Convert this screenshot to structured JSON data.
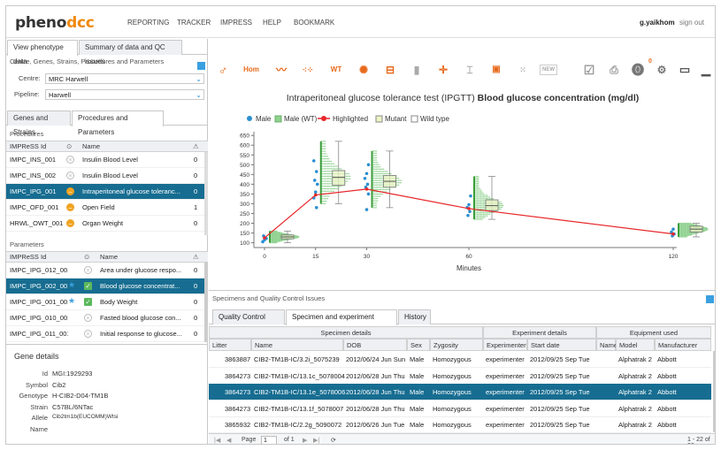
{
  "app": {
    "logo_a": "pheno",
    "logo_b": "dcc"
  },
  "nav": [
    "REPORTING",
    "TRACKER",
    "IMPRESS",
    "HELP",
    "BOOKMARK"
  ],
  "user": {
    "name": "g.yaikhom",
    "signout": "sign out"
  },
  "left": {
    "tabs": [
      "View phenotype data",
      "Summary of data and QC issues"
    ],
    "subtitle": "Centre, Genes, Strains, Procedures and Parameters",
    "centre_label": "Centre:",
    "centre_value": "MRC Harwell",
    "pipeline_label": "Pipeline:",
    "pipeline_value": "Harwell",
    "tabs2": [
      "Genes and Strains",
      "Procedures and Parameters"
    ],
    "procedures_label": "Procedures",
    "proc_headers": [
      "IMPReSS Id",
      "Name"
    ],
    "procedures": [
      {
        "id": "IMPC_INS_001",
        "name": "Insulin Blood Level",
        "status": "x",
        "count": "0"
      },
      {
        "id": "IMPC_INS_002",
        "name": "Insulin Blood Level",
        "status": "x",
        "count": "0"
      },
      {
        "id": "IMPC_IPG_001",
        "name": "Intraperitoneal glucose toleranc...",
        "status": "o",
        "count": "0"
      },
      {
        "id": "IMPC_OFD_001",
        "name": "Open Field",
        "status": "o",
        "count": "1"
      },
      {
        "id": "HRWL_OWT_001",
        "name": "Organ Weight",
        "status": "o",
        "count": "0"
      }
    ],
    "parameters_label": "Parameters",
    "param_headers": [
      "IMPReSS Id",
      "Name"
    ],
    "parameters": [
      {
        "id": "IMPC_IPG_012_001",
        "name": "Area under glucose respo...",
        "status": "x",
        "count": "0",
        "star": ""
      },
      {
        "id": "IMPC_IPG_002_001",
        "name": "Blood glucose concentrat...",
        "status": "chk",
        "count": "0",
        "star": "★"
      },
      {
        "id": "IMPC_IPG_001_001",
        "name": "Body Weight",
        "status": "chk",
        "count": "0",
        "star": "★"
      },
      {
        "id": "IMPC_IPG_010_001",
        "name": "Fasted blood glucose con...",
        "status": "x",
        "count": "0",
        "star": ""
      },
      {
        "id": "IMPC_IPG_011_001",
        "name": "Initial response to glucose...",
        "status": "x",
        "count": "0",
        "star": ""
      }
    ],
    "gene_details_title": "Gene details",
    "gene": [
      {
        "k": "Id",
        "v": "MGI:1929293"
      },
      {
        "k": "Symbol",
        "v": "Cib2"
      },
      {
        "k": "Genotype",
        "v": "H-CIB2-D04-TM1B"
      },
      {
        "k": "Strain",
        "v": "C57BL/6NTac"
      },
      {
        "k": "Allele",
        "v": "Cib2tm1b(EUCOMM)Wtsi"
      },
      {
        "k": "Name",
        "v": ""
      }
    ]
  },
  "toolbar": {
    "hom": "Hom",
    "wt": "WT",
    "new": "NEW",
    "badge": "0"
  },
  "chart_data": {
    "type": "scatter",
    "title_prefix": "Intraperitoneal glucose tolerance test (IPGTT)",
    "title_bold": "Blood glucose concentration (mg/dl)",
    "xlabel": "Minutes",
    "ylabel": "",
    "x_ticks": [
      0,
      15,
      30,
      60,
      120
    ],
    "y_ticks": [
      100,
      150,
      200,
      250,
      300,
      350,
      400,
      450,
      500,
      550,
      600,
      650
    ],
    "ylim": [
      80,
      660
    ],
    "xlim": [
      0,
      120
    ],
    "legend": [
      "Male",
      "Male (WT)",
      "Highlighted",
      "Mutant",
      "Wild type"
    ],
    "legend_colors": {
      "male": "#2b8fd1",
      "wt": "#8fd18f",
      "highlight": "#e8272a",
      "mutant": "#eef5c6",
      "wildtype": "#ffffff"
    },
    "highlighted": {
      "x": [
        0,
        15,
        30,
        60,
        120
      ],
      "y": [
        125,
        345,
        375,
        275,
        145
      ]
    },
    "wt_boxes": [
      {
        "x": 0,
        "q1": 120,
        "median": 130,
        "q3": 140,
        "min": 100,
        "max": 160
      },
      {
        "x": 15,
        "q1": 395,
        "median": 435,
        "q3": 470,
        "min": 300,
        "max": 620
      },
      {
        "x": 30,
        "q1": 385,
        "median": 415,
        "q3": 445,
        "min": 280,
        "max": 570
      },
      {
        "x": 60,
        "q1": 265,
        "median": 290,
        "q3": 320,
        "min": 220,
        "max": 440
      },
      {
        "x": 120,
        "q1": 155,
        "median": 170,
        "q3": 185,
        "min": 130,
        "max": 200
      }
    ],
    "mutant_points": {
      "x": [
        0,
        0,
        0,
        0,
        15,
        15,
        15,
        15,
        15,
        15,
        15,
        30,
        30,
        30,
        30,
        30,
        30,
        30,
        60,
        60,
        60,
        60,
        60,
        120,
        120,
        120,
        120
      ],
      "y": [
        105,
        115,
        122,
        135,
        280,
        330,
        360,
        400,
        420,
        465,
        520,
        270,
        350,
        385,
        400,
        430,
        455,
        500,
        240,
        260,
        280,
        295,
        340,
        135,
        145,
        155,
        170
      ]
    }
  },
  "bottom": {
    "title": "Specimens and Quality Control Issues",
    "tabs": [
      "Quality Control issues",
      "Specimen and experiment details",
      "History"
    ],
    "groups": [
      "Specimen details",
      "Experiment details",
      "Equipment used"
    ],
    "headers": [
      "Litter",
      "Name",
      "DOB",
      "Sex",
      "Zygosity",
      "Experimenter",
      "Start date",
      "Name",
      "Model",
      "Manufacturer"
    ],
    "rows": [
      [
        "3863887",
        "CIB2-TM1B-IC/3.2i_5075239",
        "2012/06/24 Jun Sun",
        "Male",
        "Homozygous",
        "experimenter",
        "2012/09/25 Sep Tue",
        "",
        "Alphatrak 2",
        "Abbott"
      ],
      [
        "3864273",
        "CIB2-TM1B-IC/13.1c_5078004",
        "2012/06/28 Jun Thu",
        "Male",
        "Homozygous",
        "experimenter",
        "2012/09/25 Sep Tue",
        "",
        "Alphatrak 2",
        "Abbott"
      ],
      [
        "3864273",
        "CIB2-TM1B-IC/13.1e_5078006",
        "2012/06/28 Jun Thu",
        "Male",
        "Homozygous",
        "experimenter",
        "2012/09/25 Sep Tue",
        "",
        "Alphatrak 2",
        "Abbott"
      ],
      [
        "3864273",
        "CIB2-TM1B-IC/13.1f_5078007",
        "2012/06/28 Jun Thu",
        "Male",
        "Homozygous",
        "experimenter",
        "2012/09/25 Sep Tue",
        "",
        "Alphatrak 2",
        "Abbott"
      ],
      [
        "3865932",
        "CIB2-TM1B-IC/2.2g_5090072",
        "2012/06/26 Jun Tue",
        "Male",
        "Homozygous",
        "experimenter",
        "2012/09/25 Sep Tue",
        "",
        "Alphatrak 2",
        "Abbott"
      ]
    ],
    "pager": {
      "page_label": "Page",
      "page": "1",
      "of_label": "of 1",
      "summary": "1 - 22 of 22"
    }
  }
}
